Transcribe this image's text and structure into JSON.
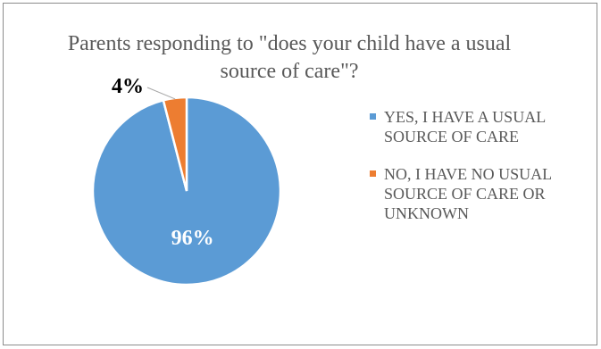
{
  "chart_data": {
    "type": "pie",
    "title": "Parents responding to \"does your child have a usual source of care\"?",
    "slices": [
      {
        "label": "YES, I HAVE A USUAL SOURCE OF CARE",
        "value": 96,
        "data_label": "96%",
        "color": "#5b9bd5"
      },
      {
        "label": "NO, I HAVE NO USUAL SOURCE OF CARE OR UNKNOWN",
        "value": 4,
        "data_label": "4%",
        "color": "#ed7d31"
      }
    ],
    "legend_position": "right",
    "start_angle": "top, clockwise, small slice ending at 12 o'clock"
  }
}
